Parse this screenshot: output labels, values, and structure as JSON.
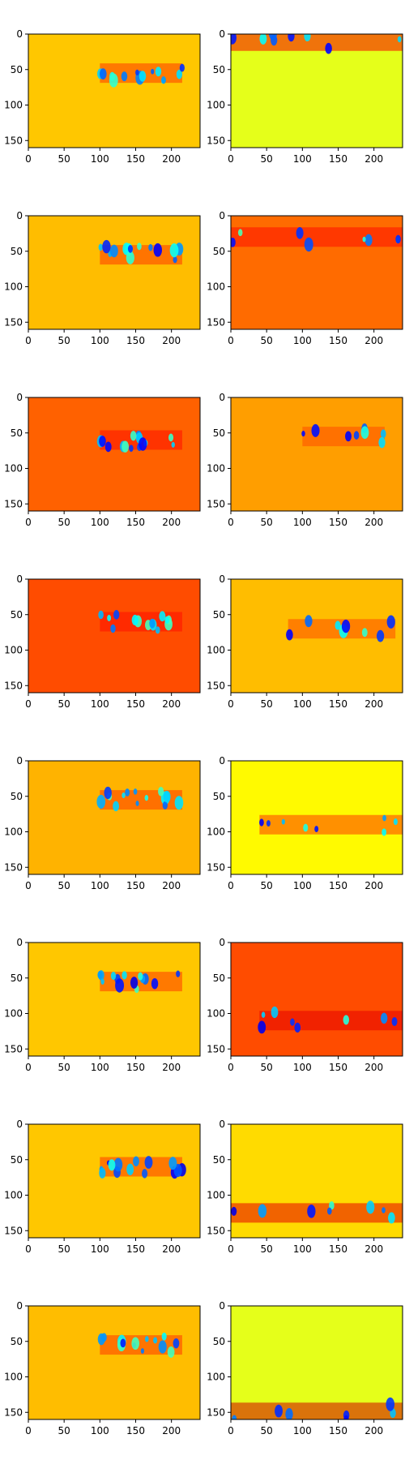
{
  "figure": {
    "description": "8 rows x 2 columns of heatmap subplots (jet colormap)"
  },
  "chart_data": {
    "type": "heatmap",
    "colormap": "jet",
    "grid": false,
    "xlim": [
      0,
      240
    ],
    "ylim": [
      160,
      0
    ],
    "x_ticks": [
      0,
      50,
      100,
      150,
      200
    ],
    "y_ticks": [
      0,
      50,
      100,
      150
    ],
    "panels": [
      {
        "row": 1,
        "col": 1,
        "background": 0.68,
        "band": {
          "y_center": 55,
          "x_range": [
            100,
            215
          ],
          "level": 0.82
        }
      },
      {
        "row": 1,
        "col": 2,
        "background": 0.6,
        "band": {
          "y_center": 10,
          "x_range": [
            0,
            240
          ],
          "level": 0.88
        }
      },
      {
        "row": 2,
        "col": 1,
        "background": 0.69,
        "band": {
          "y_center": 55,
          "x_range": [
            100,
            215
          ],
          "level": 0.82
        }
      },
      {
        "row": 2,
        "col": 2,
        "background": 0.77,
        "band": {
          "y_center": 30,
          "x_range": [
            0,
            240
          ],
          "level": 0.86
        }
      },
      {
        "row": 3,
        "col": 1,
        "background": 0.78,
        "band": {
          "y_center": 60,
          "x_range": [
            100,
            215
          ],
          "level": 0.86
        }
      },
      {
        "row": 3,
        "col": 2,
        "background": 0.72,
        "band": {
          "y_center": 55,
          "x_range": [
            100,
            215
          ],
          "level": 0.8
        }
      },
      {
        "row": 4,
        "col": 1,
        "background": 0.8,
        "band": {
          "y_center": 60,
          "x_range": [
            100,
            215
          ],
          "level": 0.86
        }
      },
      {
        "row": 4,
        "col": 2,
        "background": 0.69,
        "band": {
          "y_center": 70,
          "x_range": [
            80,
            230
          ],
          "level": 0.8
        }
      },
      {
        "row": 5,
        "col": 1,
        "background": 0.7,
        "band": {
          "y_center": 55,
          "x_range": [
            100,
            215
          ],
          "level": 0.82
        }
      },
      {
        "row": 5,
        "col": 2,
        "background": 0.63,
        "band": {
          "y_center": 90,
          "x_range": [
            40,
            240
          ],
          "level": 0.82
        }
      },
      {
        "row": 6,
        "col": 1,
        "background": 0.68,
        "band": {
          "y_center": 55,
          "x_range": [
            100,
            215
          ],
          "level": 0.82
        }
      },
      {
        "row": 6,
        "col": 2,
        "background": 0.8,
        "band": {
          "y_center": 110,
          "x_range": [
            40,
            240
          ],
          "level": 0.9
        }
      },
      {
        "row": 7,
        "col": 1,
        "background": 0.68,
        "band": {
          "y_center": 60,
          "x_range": [
            100,
            215
          ],
          "level": 0.82
        }
      },
      {
        "row": 7,
        "col": 2,
        "background": 0.66,
        "band": {
          "y_center": 125,
          "x_range": [
            0,
            240
          ],
          "level": 0.9
        }
      },
      {
        "row": 8,
        "col": 1,
        "background": 0.69,
        "band": {
          "y_center": 55,
          "x_range": [
            100,
            215
          ],
          "level": 0.82
        }
      },
      {
        "row": 8,
        "col": 2,
        "background": 0.6,
        "band": {
          "y_center": 150,
          "x_range": [
            0,
            240
          ],
          "level": 0.92
        }
      }
    ]
  }
}
